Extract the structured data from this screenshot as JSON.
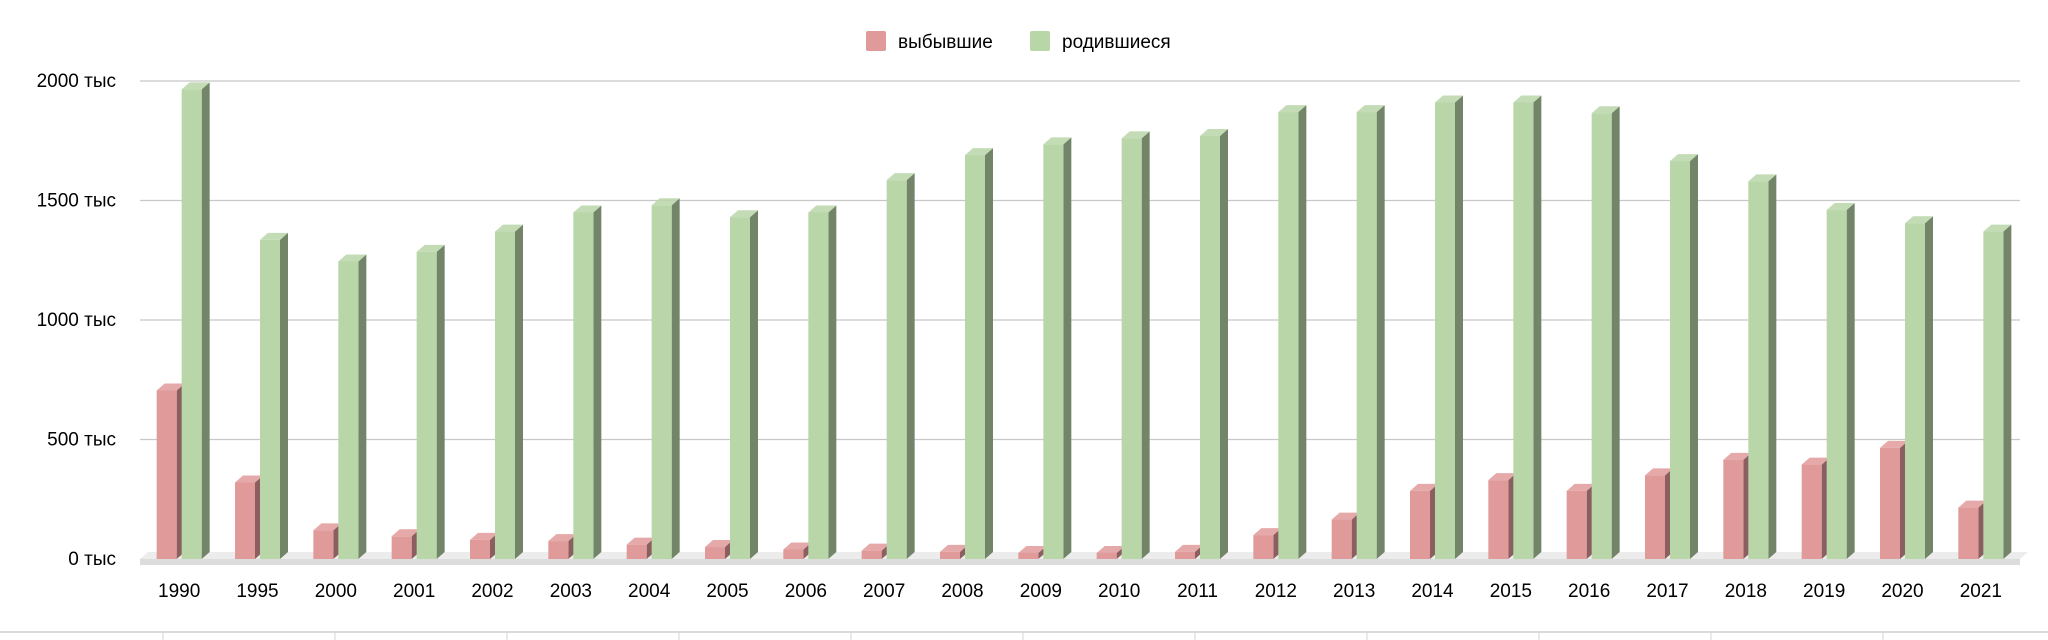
{
  "chart_data": {
    "type": "bar",
    "style": "3d-column",
    "categories": [
      "1990",
      "1995",
      "2000",
      "2001",
      "2002",
      "2003",
      "2004",
      "2005",
      "2006",
      "2007",
      "2008",
      "2009",
      "2010",
      "2011",
      "2012",
      "2013",
      "2014",
      "2015",
      "2016",
      "2017",
      "2018",
      "2019",
      "2020",
      "2021"
    ],
    "series": [
      {
        "name": "выбывшие",
        "color": "#e09a9a",
        "values": [
          705,
          320,
          120,
          95,
          80,
          75,
          60,
          50,
          40,
          35,
          30,
          25,
          25,
          30,
          100,
          165,
          285,
          330,
          285,
          350,
          415,
          395,
          465,
          215
        ]
      },
      {
        "name": "родившиеся",
        "color": "#b8d6a8",
        "values": [
          1965,
          1335,
          1245,
          1285,
          1370,
          1450,
          1480,
          1430,
          1450,
          1585,
          1690,
          1735,
          1760,
          1770,
          1870,
          1870,
          1910,
          1910,
          1865,
          1665,
          1580,
          1460,
          1405,
          1370
        ]
      }
    ],
    "y_ticks": [
      "0  тыс",
      "500  тыс",
      "1000  тыс",
      "1500  тыс",
      "2000  тыс"
    ],
    "y_tick_values": [
      0,
      500,
      1000,
      1500,
      2000
    ],
    "ylim": [
      0,
      2000
    ],
    "grid": true,
    "legend_position": "top-center",
    "title": "",
    "xlabel": "",
    "ylabel": ""
  }
}
